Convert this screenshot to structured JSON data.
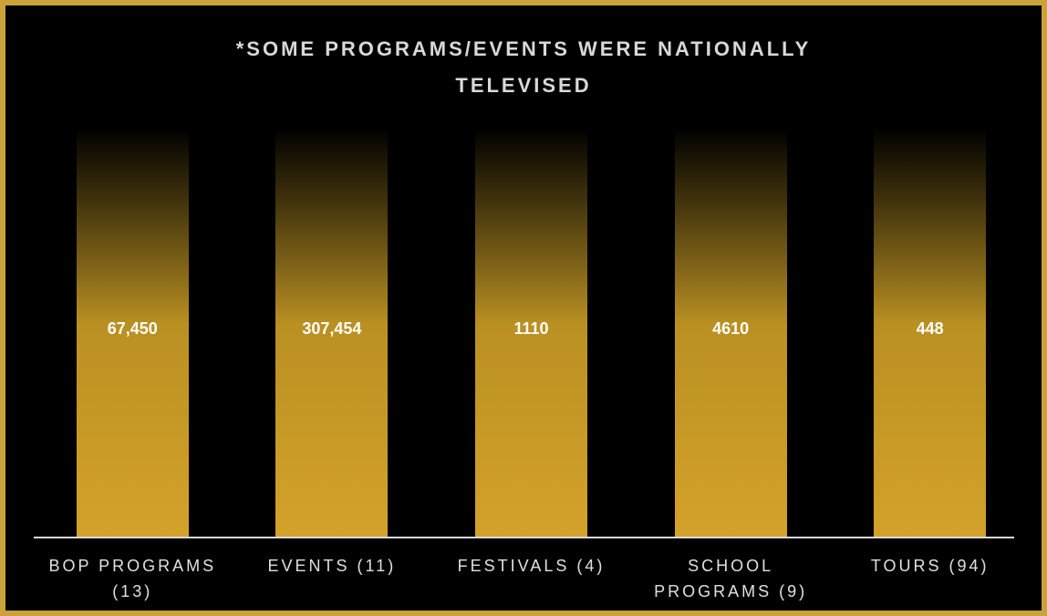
{
  "chart_data": {
    "type": "bar",
    "title": "*SOME PROGRAMS/EVENTS WERE NATIONALLY TELEVISED",
    "categories": [
      "BOP PROGRAMS (13)",
      "EVENTS (11)",
      "FESTIVALS (4)",
      "SCHOOL PROGRAMS (9)",
      "TOURS (94)"
    ],
    "values": [
      67450,
      307454,
      1110,
      4610,
      448
    ],
    "value_labels": [
      "67,450",
      "307,454",
      "1110",
      "4610",
      "448"
    ],
    "color": "#d4a22a"
  }
}
